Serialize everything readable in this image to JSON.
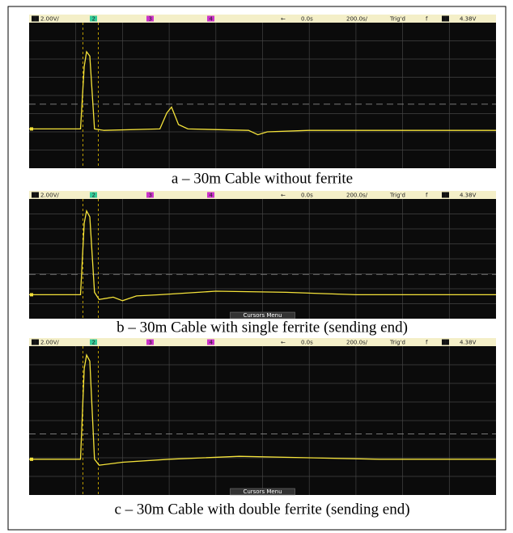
{
  "panels": [
    {
      "status": {
        "ch1": "1",
        "scale": "2.00V/",
        "ch2": "2",
        "ch3": "3",
        "ch4": "4",
        "arrow": "←",
        "delay": "0.0s",
        "timebase": "200.0s/",
        "trig": "Trig'd",
        "slope": "f",
        "trig_ch": "1",
        "level": "4.38V"
      },
      "caption": "a – 30m Cable without ferrite"
    },
    {
      "status": {
        "ch1": "1",
        "scale": "2.00V/",
        "ch2": "2",
        "ch3": "3",
        "ch4": "4",
        "arrow": "←",
        "delay": "0.0s",
        "timebase": "200.0s/",
        "trig": "Trig'd",
        "slope": "f",
        "trig_ch": "1",
        "level": "4.38V"
      },
      "menu": "Cursors Menu",
      "caption": "b – 30m Cable with single ferrite (sending end)"
    },
    {
      "status": {
        "ch1": "1",
        "scale": "2.00V/",
        "ch2": "2",
        "ch3": "3",
        "ch4": "4",
        "arrow": "←",
        "delay": "0.0s",
        "timebase": "200.0s/",
        "trig": "Trig'd",
        "slope": "f",
        "trig_ch": "1",
        "level": "4.38V"
      },
      "menu": "Cursors Menu",
      "caption": "c – 30m Cable with double ferrite (sending end)"
    }
  ]
}
